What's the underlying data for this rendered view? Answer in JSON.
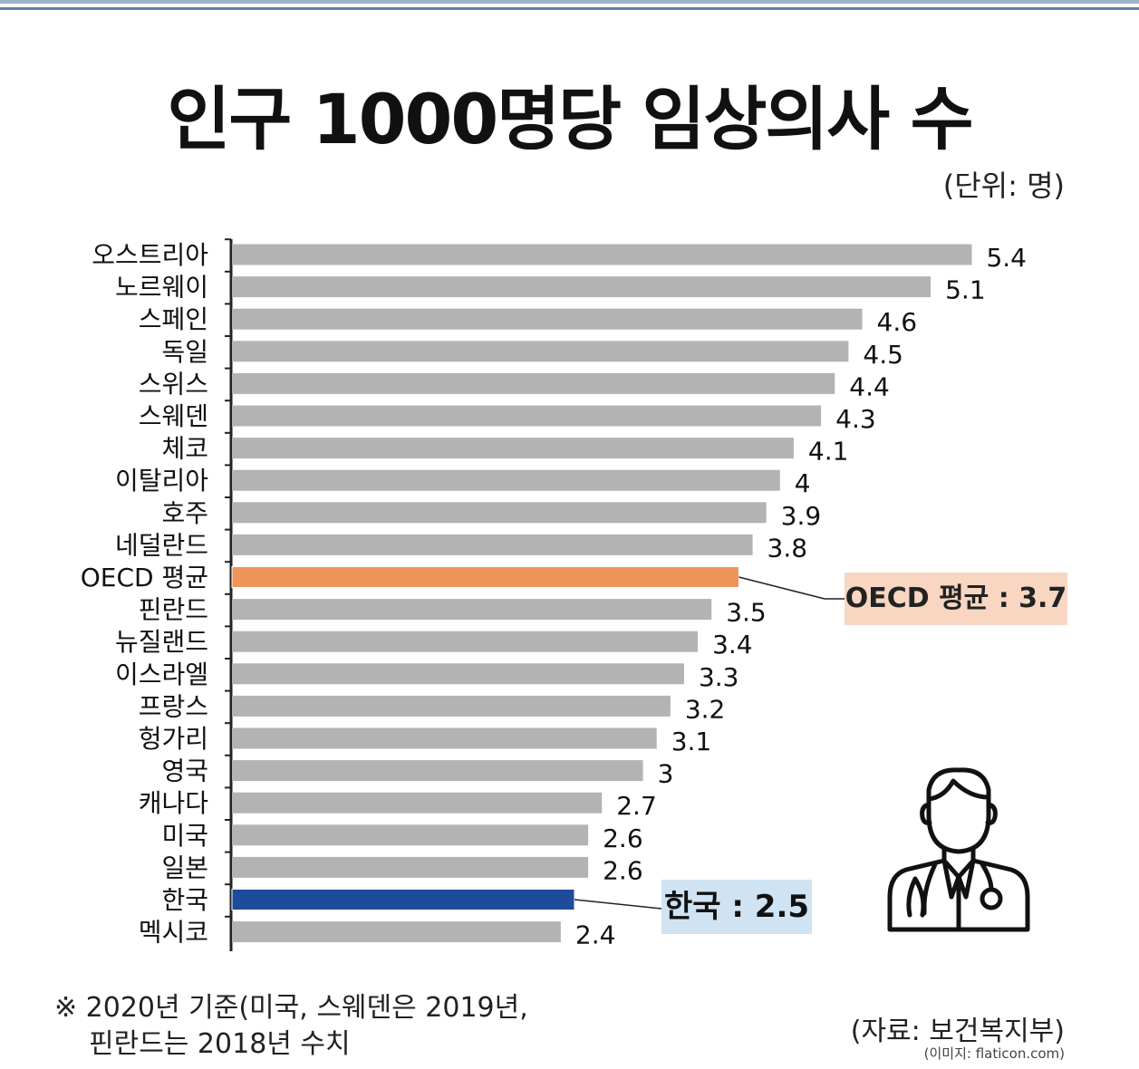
{
  "title": "인구 1000명당 임상의사 수",
  "unit_label": "(단위: 명)",
  "chart_data": {
    "type": "bar",
    "orientation": "horizontal",
    "title": "인구 1000명당 임상의사 수",
    "categories": [
      "오스트리아",
      "노르웨이",
      "스페인",
      "독일",
      "스위스",
      "스웨덴",
      "체코",
      "이탈리아",
      "호주",
      "네덜란드",
      "OECD 평균",
      "핀란드",
      "뉴질랜드",
      "이스라엘",
      "프랑스",
      "헝가리",
      "영국",
      "캐나다",
      "미국",
      "일본",
      "한국",
      "멕시코"
    ],
    "values": [
      5.4,
      5.1,
      4.6,
      4.5,
      4.4,
      4.3,
      4.1,
      4,
      3.9,
      3.8,
      3.7,
      3.5,
      3.4,
      3.3,
      3.2,
      3.1,
      3,
      2.7,
      2.6,
      2.6,
      2.5,
      2.4
    ],
    "value_labels": [
      "5.4",
      "5.1",
      "4.6",
      "4.5",
      "4.4",
      "4.3",
      "4.1",
      "4",
      "3.9",
      "3.8",
      "",
      "3.5",
      "3.4",
      "3.3",
      "3.2",
      "3.1",
      "3",
      "2.7",
      "2.6",
      "2.6",
      "",
      ""
    ],
    "value_labels_extra": {
      "21": "2.4"
    },
    "colors": {
      "default": "#b3b3b3",
      "OECD 평균": "#ee9559",
      "한국": "#1f4b9b"
    },
    "grid": false,
    "legend": "none"
  },
  "callouts": {
    "oecd": "OECD 평균 : 3.7",
    "korea": "한국 : 2.5"
  },
  "footnote": {
    "line1": "※ 2020년 기준(미국, 스웨덴은 2019년,",
    "line2": "핀란드는 2018년 수치"
  },
  "source": "(자료: 보건복지부)",
  "image_credit": "(이미지: flaticon.com)",
  "icons": {
    "doctor": "doctor-icon"
  }
}
